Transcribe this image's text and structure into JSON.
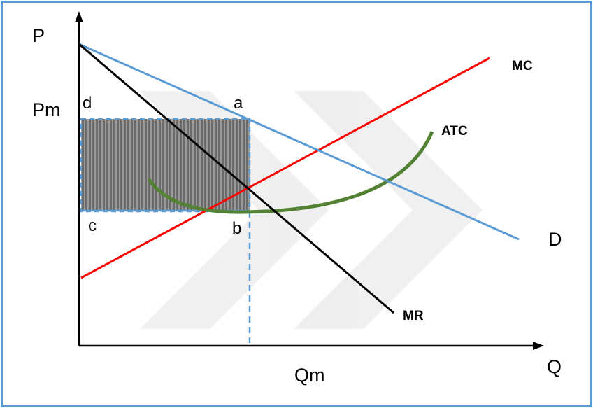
{
  "axes": {
    "y_label": "P",
    "x_label": "Q"
  },
  "price_label": "Pm",
  "quantity_label": "Qm",
  "curves": {
    "demand": {
      "label": "D",
      "color": "#5b9bd5"
    },
    "marginal_revenue": {
      "label": "MR",
      "color": "#000000"
    },
    "marginal_cost": {
      "label": "MC",
      "color": "#ff0000"
    },
    "average_total_cost": {
      "label": "ATC",
      "color": "#548235"
    }
  },
  "points": {
    "a": "a",
    "b": "b",
    "c": "c",
    "d": "d"
  },
  "profit_area": {
    "fill": "#7f7f7f"
  }
}
